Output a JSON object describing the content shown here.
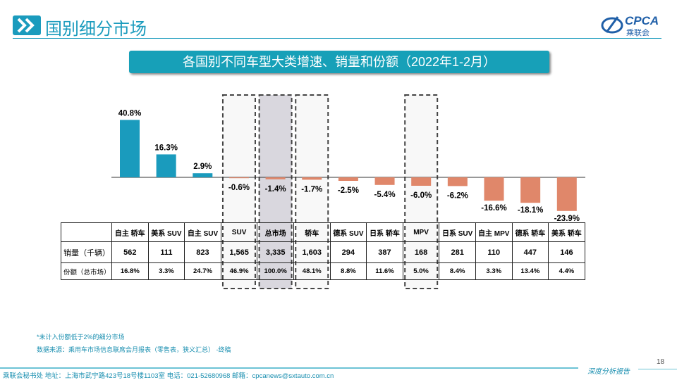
{
  "header": {
    "title": "国别细分市场",
    "logo_text": "CPCA",
    "logo_sub": "乘联会"
  },
  "banner": "各国别不同车型大类增速、销量和份额（2022年1-2月）",
  "colors": {
    "positive": "#1a9bbd",
    "negative": "#e0876a",
    "highlight": "#d9d7de",
    "accent": "#17a0b8"
  },
  "chart_data": {
    "type": "bar",
    "title": "各国别不同车型大类增速、销量和份额（2022年1-2月）",
    "categories": [
      "自主 轿车",
      "美系 SUV",
      "自主 SUV",
      "SUV",
      "总市场",
      "轿车",
      "德系 SUV",
      "日系 轿车",
      "MPV",
      "日系 SUV",
      "自主 MPV",
      "德系 轿车",
      "美系 轿车"
    ],
    "values": [
      40.8,
      16.3,
      2.9,
      -0.6,
      -1.4,
      -1.7,
      -2.5,
      -5.4,
      -6.0,
      -6.2,
      -16.6,
      -18.1,
      -23.9
    ],
    "labels": [
      "40.8%",
      "16.3%",
      "2.9%",
      "-0.6%",
      "-1.4%",
      "-1.7%",
      "-2.5%",
      "-5.4%",
      "-6.0%",
      "-6.2%",
      "-16.6%",
      "-18.1%",
      "-23.9%"
    ],
    "highlighted": [
      "SUV",
      "总市场",
      "轿车",
      "MPV"
    ],
    "grid": false
  },
  "table": {
    "row_labels": [
      "销量（千辆）",
      "份额（总市场）"
    ],
    "sales": [
      "562",
      "111",
      "823",
      "1,565",
      "3,335",
      "1,603",
      "294",
      "387",
      "168",
      "281",
      "110",
      "447",
      "146"
    ],
    "share": [
      "16.8%",
      "3.3%",
      "24.7%",
      "46.9%",
      "100.0%",
      "48.1%",
      "8.8%",
      "11.6%",
      "5.0%",
      "8.4%",
      "3.3%",
      "13.4%",
      "4.4%"
    ]
  },
  "notes": [
    "*未计入份额低于2%的细分市场",
    "数据来源：乘用车市场信息联席会月报表（零售表，狭义汇总） -终稿"
  ],
  "page_number": "18",
  "footer": "乘联会秘书处   地址：上海市武宁路423号18号楼1103室  电话：021-52680968   邮箱：cpcanews@sxtauto.com.cn",
  "footer_right": "深度分析报告"
}
